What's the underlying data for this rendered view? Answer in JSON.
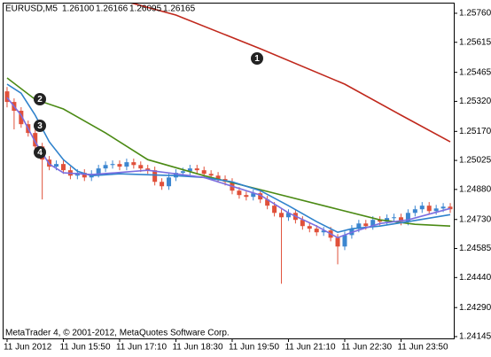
{
  "chart_data": {
    "type": "candlestick",
    "title": "EURUSD,M5",
    "header_values": [
      {
        "value": 1.261,
        "label": "1.26100"
      },
      {
        "value": 1.26166,
        "label": "1.26166"
      },
      {
        "value": 1.26095,
        "label": "1.26095"
      },
      {
        "value": 1.26165,
        "label": "1.26165"
      }
    ],
    "footer": "MetaTrader 4, © 2001-2012, MetaQuotes Software Corp.",
    "up_color": "#3c86d0",
    "down_color": "#e0503a",
    "open": [
      1.2537,
      1.25317,
      1.25273,
      1.25206,
      1.25162,
      1.25095,
      1.25029,
      1.24994,
      1.25007,
      1.24976,
      1.24949,
      1.24963,
      1.2494,
      1.24958,
      1.24985,
      1.25002,
      1.25007,
      1.24994,
      1.25016,
      1.25002,
      1.24985,
      1.24976,
      1.24918,
      1.24896,
      1.2494,
      1.24963,
      1.24971,
      1.24985,
      1.24976,
      1.24958,
      1.24949,
      1.24932,
      1.24918,
      1.24874,
      1.24852,
      1.24843,
      1.24861,
      1.2483,
      1.24799,
      1.24763,
      1.24741,
      1.24763,
      1.24728,
      1.24697,
      1.24684,
      1.24666,
      1.24675,
      1.24639,
      1.24595,
      1.24652,
      1.24684,
      1.2471,
      1.24697,
      1.24728,
      1.24719,
      1.24737,
      1.24741,
      1.24719,
      1.24763,
      1.24781,
      1.24799,
      1.24772,
      1.24785,
      1.24794
    ],
    "high": [
      1.25392,
      1.25335,
      1.25291,
      1.25224,
      1.2518,
      1.25113,
      1.25047,
      1.25025,
      1.25025,
      1.24994,
      1.24981,
      1.24981,
      1.24976,
      1.25003,
      1.2502,
      1.25025,
      1.25025,
      1.25034,
      1.25034,
      1.2502,
      1.25003,
      1.24994,
      1.24936,
      1.24958,
      1.24981,
      1.24989,
      1.25003,
      1.25003,
      1.24994,
      1.24976,
      1.24967,
      1.2495,
      1.24936,
      1.24892,
      1.2487,
      1.24879,
      1.24879,
      1.24848,
      1.24817,
      1.24781,
      1.24781,
      1.24781,
      1.24746,
      1.24715,
      1.24702,
      1.24693,
      1.24693,
      1.24657,
      1.2467,
      1.24702,
      1.24728,
      1.24728,
      1.24746,
      1.24746,
      1.24755,
      1.24759,
      1.24759,
      1.24781,
      1.24799,
      1.24817,
      1.24817,
      1.24803,
      1.24812,
      1.24812
    ],
    "low": [
      1.2529,
      1.2518,
      1.25188,
      1.25144,
      1.25077,
      1.2483,
      1.24976,
      1.24976,
      1.24958,
      1.24931,
      1.24931,
      1.24922,
      1.24922,
      1.2494,
      1.24967,
      1.24984,
      1.24976,
      1.24976,
      1.24984,
      1.24967,
      1.24958,
      1.249,
      1.24878,
      1.24878,
      1.24922,
      1.24945,
      1.24953,
      1.24958,
      1.2494,
      1.24931,
      1.24914,
      1.249,
      1.24856,
      1.24834,
      1.24825,
      1.24825,
      1.24812,
      1.24781,
      1.24745,
      1.24409,
      1.24723,
      1.2471,
      1.24679,
      1.24666,
      1.24648,
      1.24648,
      1.24621,
      1.24506,
      1.24577,
      1.24634,
      1.24666,
      1.24679,
      1.24679,
      1.24701,
      1.24701,
      1.24719,
      1.24701,
      1.24701,
      1.24745,
      1.24763,
      1.24754,
      1.24754,
      1.24767,
      1.24763
    ],
    "close": [
      1.25317,
      1.25273,
      1.25206,
      1.25162,
      1.25095,
      1.25029,
      1.24994,
      1.25007,
      1.24976,
      1.24949,
      1.24963,
      1.2494,
      1.24958,
      1.24985,
      1.25002,
      1.25007,
      1.24994,
      1.25016,
      1.25002,
      1.24985,
      1.24976,
      1.24918,
      1.24896,
      1.2494,
      1.24963,
      1.24971,
      1.24985,
      1.24976,
      1.24958,
      1.24949,
      1.24932,
      1.24918,
      1.24874,
      1.24852,
      1.24843,
      1.24861,
      1.2483,
      1.24799,
      1.24763,
      1.24741,
      1.24763,
      1.24728,
      1.24697,
      1.24684,
      1.24666,
      1.24675,
      1.24639,
      1.24595,
      1.24652,
      1.24684,
      1.2471,
      1.24697,
      1.24728,
      1.24719,
      1.24737,
      1.24741,
      1.24719,
      1.24763,
      1.24781,
      1.24799,
      1.24772,
      1.24785,
      1.24794,
      1.24781
    ],
    "lines": [
      {
        "color": "#c0281c",
        "x": [
          17,
          24,
          36,
          48,
          56,
          63
        ],
        "values": [
          1.25818,
          1.25751,
          1.25583,
          1.25406,
          1.25251,
          1.25118
        ]
      },
      {
        "color": "#4b8a14",
        "x": [
          0,
          4,
          8,
          14,
          20,
          28,
          37,
          46,
          53,
          58,
          63
        ],
        "values": [
          1.25437,
          1.2533,
          1.25282,
          1.25162,
          1.25029,
          1.24949,
          1.2487,
          1.2479,
          1.24728,
          1.24706,
          1.24697
        ]
      },
      {
        "color": "#2f82cc",
        "x": [
          0,
          2,
          4,
          6,
          8,
          10,
          12,
          16,
          24,
          28,
          32,
          36,
          40,
          44,
          47,
          49,
          53,
          57,
          63
        ],
        "values": [
          1.25406,
          1.25361,
          1.25251,
          1.25118,
          1.25029,
          1.24971,
          1.24949,
          1.24958,
          1.24949,
          1.2494,
          1.24918,
          1.24874,
          1.24799,
          1.24719,
          1.24666,
          1.24684,
          1.24697,
          1.24719,
          1.24754
        ]
      },
      {
        "color": "#7a6ee0",
        "x": [
          0,
          2,
          4,
          6,
          8,
          12,
          20,
          28,
          36,
          40,
          44,
          47,
          49,
          53,
          57,
          63
        ],
        "values": [
          1.25339,
          1.25251,
          1.25118,
          1.25007,
          1.24963,
          1.24954,
          1.24976,
          1.2494,
          1.24852,
          1.24763,
          1.24697,
          1.24639,
          1.24666,
          1.2471,
          1.24728,
          1.24785
        ]
      }
    ],
    "annotations": [
      "1",
      "2",
      "3",
      "4"
    ],
    "xlim": [
      -0.5,
      63.5
    ],
    "xticks": [
      {
        "value": 0,
        "label": "11 Jun 2012"
      },
      {
        "value": 8,
        "label": "11 Jun 15:50"
      },
      {
        "value": 16,
        "label": "11 Jun 17:10"
      },
      {
        "value": 24,
        "label": "11 Jun 18:30"
      },
      {
        "value": 32,
        "label": "11 Jun 19:50"
      },
      {
        "value": 40,
        "label": "11 Jun 21:10"
      },
      {
        "value": 48,
        "label": "11 Jun 22:30"
      },
      {
        "value": 56,
        "label": "11 Jun 23:50"
      }
    ],
    "ylim": [
      1.24136,
      1.25813
    ],
    "yticks": [
      {
        "value": 1.2576,
        "label": "1.25760"
      },
      {
        "value": 1.25615,
        "label": "1.25615"
      },
      {
        "value": 1.25465,
        "label": "1.25465"
      },
      {
        "value": 1.2532,
        "label": "1.25320"
      },
      {
        "value": 1.2517,
        "label": "1.25170"
      },
      {
        "value": 1.25025,
        "label": "1.25025"
      },
      {
        "value": 1.2488,
        "label": "1.24880"
      },
      {
        "value": 1.2473,
        "label": "1.24730"
      },
      {
        "value": 1.24585,
        "label": "1.24585"
      },
      {
        "value": 1.2444,
        "label": "1.24440"
      },
      {
        "value": 1.2429,
        "label": "1.24290"
      },
      {
        "value": 1.24145,
        "label": "1.24145"
      }
    ]
  }
}
